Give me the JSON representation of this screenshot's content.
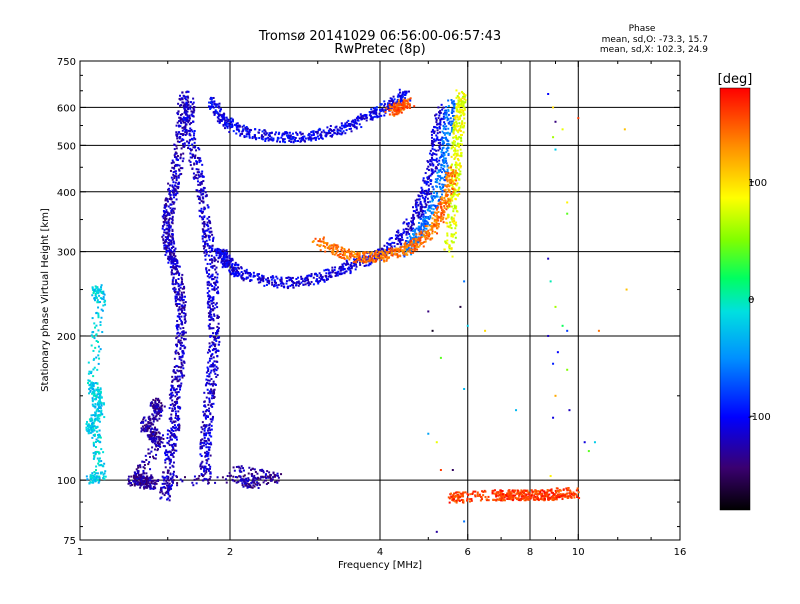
{
  "chart_data": {
    "type": "scatter",
    "title": "Tromsø 20141029 06:56:00-06:57:43",
    "subtitle": "RwPretec (8p)",
    "xlabel": "Frequency [MHz]",
    "ylabel": "Stationary phase Virtual Height [km]",
    "x_scale": "log",
    "y_scale": "log",
    "xlim": [
      1,
      16
    ],
    "ylim": [
      75,
      750
    ],
    "x_ticks": [
      1,
      2,
      4,
      6,
      8,
      10,
      16
    ],
    "y_ticks": [
      75,
      100,
      200,
      300,
      400,
      500,
      600,
      750
    ],
    "grid_x": [
      2,
      4,
      6,
      8,
      10
    ],
    "grid_y": [
      100,
      200,
      300,
      400,
      500,
      600
    ],
    "phase_stats": {
      "title": "Phase",
      "line_o": "mean, sd,O: -73.3, 15.7",
      "line_x": "mean, sd,X: 102.3, 24.9"
    },
    "colorbar": {
      "label": "[deg]",
      "range": [
        -180,
        180
      ],
      "ticks": [
        100,
        0,
        -100
      ]
    },
    "traces": [
      {
        "note_color_deg": -120,
        "points": [
          [
            1.62,
            640
          ],
          [
            1.6,
            560
          ],
          [
            1.58,
            480
          ],
          [
            1.55,
            420
          ],
          [
            1.52,
            380
          ],
          [
            1.5,
            350
          ],
          [
            1.5,
            320
          ],
          [
            1.52,
            300
          ],
          [
            1.55,
            280
          ],
          [
            1.58,
            250
          ],
          [
            1.6,
            230
          ],
          [
            1.6,
            200
          ],
          [
            1.58,
            170
          ],
          [
            1.55,
            150
          ],
          [
            1.55,
            130
          ],
          [
            1.52,
            115
          ],
          [
            1.5,
            100
          ],
          [
            1.48,
            92
          ]
        ]
      },
      {
        "note_color_deg": -115,
        "points": [
          [
            1.66,
            620
          ],
          [
            1.65,
            560
          ],
          [
            1.7,
            470
          ],
          [
            1.75,
            400
          ],
          [
            1.8,
            340
          ],
          [
            1.82,
            300
          ],
          [
            1.85,
            260
          ],
          [
            1.85,
            230
          ],
          [
            1.86,
            200
          ],
          [
            1.85,
            175
          ],
          [
            1.82,
            150
          ],
          [
            1.8,
            130
          ],
          [
            1.78,
            115
          ],
          [
            1.8,
            100
          ]
        ]
      },
      {
        "note_color_deg": -105,
        "points": [
          [
            1.85,
            620
          ],
          [
            1.9,
            580
          ],
          [
            2.0,
            550
          ],
          [
            2.2,
            530
          ],
          [
            2.5,
            520
          ],
          [
            2.8,
            520
          ],
          [
            3.1,
            530
          ],
          [
            3.4,
            545
          ],
          [
            3.7,
            565
          ],
          [
            4.0,
            590
          ],
          [
            4.3,
            615
          ],
          [
            4.5,
            640
          ]
        ]
      },
      {
        "note_color_deg": -110,
        "points": [
          [
            1.9,
            300
          ],
          [
            1.95,
            290
          ],
          [
            2.0,
            280
          ],
          [
            2.1,
            270
          ],
          [
            2.3,
            262
          ],
          [
            2.6,
            258
          ],
          [
            2.9,
            262
          ],
          [
            3.2,
            270
          ],
          [
            3.5,
            280
          ],
          [
            3.8,
            290
          ],
          [
            4.1,
            300
          ],
          [
            4.4,
            320
          ],
          [
            4.7,
            350
          ],
          [
            4.9,
            390
          ],
          [
            5.1,
            450
          ],
          [
            5.2,
            520
          ],
          [
            5.3,
            600
          ]
        ]
      },
      {
        "note_color_deg": -60,
        "points": [
          [
            4.5,
            300
          ],
          [
            4.7,
            320
          ],
          [
            4.9,
            340
          ],
          [
            5.1,
            370
          ],
          [
            5.3,
            420
          ],
          [
            5.4,
            480
          ],
          [
            5.5,
            550
          ],
          [
            5.55,
            620
          ]
        ]
      },
      {
        "note_color_deg": 80,
        "points": [
          [
            5.5,
            300
          ],
          [
            5.6,
            360
          ],
          [
            5.65,
            420
          ],
          [
            5.7,
            480
          ],
          [
            5.75,
            540
          ],
          [
            5.8,
            600
          ],
          [
            5.8,
            640
          ]
        ]
      },
      {
        "note_color_deg": 140,
        "points": [
          [
            3.0,
            315
          ],
          [
            3.3,
            300
          ],
          [
            3.6,
            292
          ],
          [
            3.9,
            292
          ],
          [
            4.2,
            296
          ],
          [
            4.5,
            303
          ],
          [
            4.8,
            315
          ],
          [
            5.1,
            335
          ],
          [
            5.3,
            360
          ],
          [
            5.5,
            400
          ],
          [
            5.6,
            450
          ]
        ]
      },
      {
        "note_color_deg": 150,
        "points": [
          [
            4.2,
            590
          ],
          [
            4.4,
            600
          ],
          [
            4.6,
            620
          ]
        ]
      },
      {
        "note_color_deg": 160,
        "points": [
          [
            5.6,
            92
          ],
          [
            5.8,
            92
          ],
          [
            6.9,
            93
          ],
          [
            7.2,
            93
          ],
          [
            7.5,
            93
          ],
          [
            7.9,
            93
          ],
          [
            8.3,
            93
          ],
          [
            8.8,
            93
          ],
          [
            9.3,
            94
          ],
          [
            9.9,
            94
          ]
        ]
      },
      {
        "note_color_deg": -20,
        "points": [
          [
            1.08,
            250
          ],
          [
            1.1,
            240
          ],
          [
            1.06,
            160
          ],
          [
            1.08,
            150
          ],
          [
            1.1,
            140
          ],
          [
            1.05,
            130
          ],
          [
            1.08,
            125
          ],
          [
            1.1,
            102
          ],
          [
            1.05,
            100
          ]
        ]
      },
      {
        "note_color_deg": -130,
        "points": [
          [
            1.4,
            145
          ],
          [
            1.45,
            140
          ],
          [
            1.35,
            130
          ],
          [
            1.4,
            125
          ],
          [
            1.45,
            120
          ],
          [
            1.3,
            102
          ],
          [
            1.35,
            100
          ],
          [
            1.4,
            98
          ],
          [
            1.25,
            100
          ],
          [
            2.1,
            100
          ],
          [
            2.2,
            98
          ],
          [
            2.5,
            102
          ],
          [
            2.0,
            105
          ]
        ]
      }
    ],
    "sparse_points": [
      [
        8.7,
        640,
        -100
      ],
      [
        8.9,
        600,
        100
      ],
      [
        9.0,
        560,
        -140
      ],
      [
        10.0,
        570,
        160
      ],
      [
        9.3,
        540,
        80
      ],
      [
        8.9,
        520,
        60
      ],
      [
        9.0,
        490,
        -20
      ],
      [
        9.5,
        380,
        90
      ],
      [
        9.5,
        360,
        40
      ],
      [
        8.7,
        290,
        -120
      ],
      [
        8.8,
        260,
        0
      ],
      [
        9.0,
        230,
        60
      ],
      [
        9.3,
        210,
        20
      ],
      [
        9.5,
        205,
        -80
      ],
      [
        8.7,
        200,
        -120
      ],
      [
        9.1,
        185,
        -100
      ],
      [
        8.9,
        175,
        -90
      ],
      [
        9.5,
        170,
        50
      ],
      [
        9.0,
        150,
        120
      ],
      [
        9.6,
        140,
        -120
      ],
      [
        8.9,
        135,
        -110
      ],
      [
        10.3,
        120,
        -110
      ],
      [
        11.0,
        205,
        140
      ],
      [
        12.4,
        540,
        110
      ],
      [
        12.5,
        250,
        110
      ],
      [
        6.0,
        210,
        -20
      ],
      [
        5.9,
        260,
        -60
      ],
      [
        5.8,
        230,
        -160
      ],
      [
        5.0,
        225,
        -140
      ],
      [
        5.1,
        205,
        -170
      ],
      [
        5.3,
        180,
        40
      ],
      [
        6.5,
        205,
        100
      ],
      [
        7.5,
        140,
        -30
      ],
      [
        5.9,
        155,
        -30
      ],
      [
        5.0,
        125,
        -40
      ],
      [
        5.2,
        120,
        80
      ],
      [
        5.3,
        105,
        160
      ],
      [
        5.6,
        105,
        -150
      ],
      [
        5.2,
        78,
        -130
      ],
      [
        5.9,
        82,
        -60
      ],
      [
        8.8,
        102,
        90
      ],
      [
        10.8,
        120,
        -20
      ],
      [
        10.5,
        115,
        40
      ],
      [
        4.6,
        620,
        -90
      ]
    ]
  }
}
